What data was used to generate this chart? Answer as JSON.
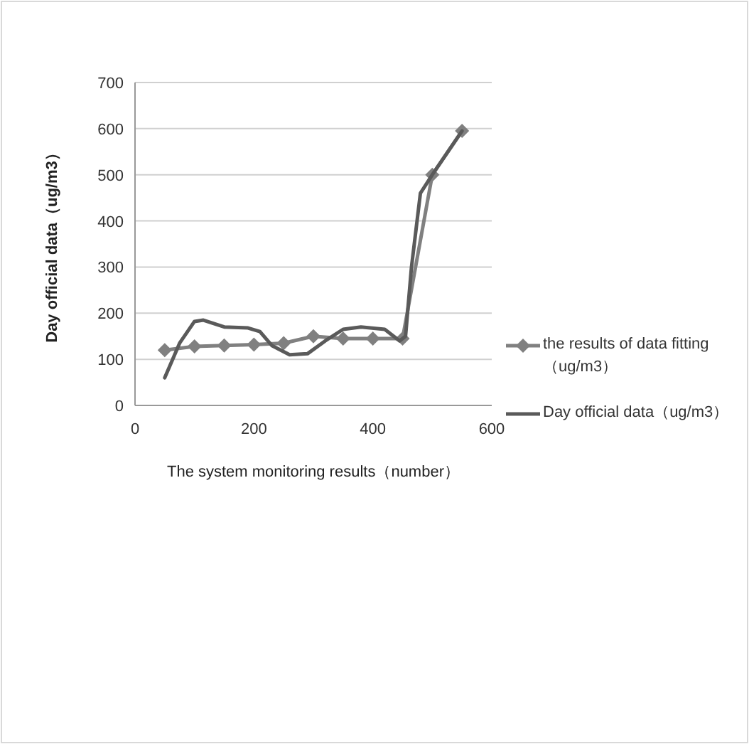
{
  "chart_data": {
    "type": "line",
    "xlabel": "The system monitoring results（number）",
    "ylabel": "Day official data（ug/m3）",
    "xlim": [
      0,
      600
    ],
    "xticks": [
      0,
      200,
      400,
      600
    ],
    "ylim": [
      0,
      700
    ],
    "yticks": [
      0,
      100,
      200,
      300,
      400,
      500,
      600,
      700
    ],
    "grid": "y",
    "legend": "right",
    "series": [
      {
        "name": "the results of data fitting（ug/m3）",
        "color": "#808080",
        "marker": "diamond",
        "x": [
          50,
          100,
          150,
          200,
          250,
          300,
          350,
          400,
          450,
          500,
          550
        ],
        "values": [
          120,
          128,
          130,
          132,
          135,
          150,
          145,
          145,
          145,
          500,
          595
        ]
      },
      {
        "name": "Day official data（ug/m3）",
        "color": "#5a5a5a",
        "marker": "none",
        "x": [
          50,
          75,
          100,
          115,
          150,
          190,
          210,
          230,
          260,
          290,
          320,
          350,
          380,
          420,
          445,
          455,
          465,
          480,
          500,
          550
        ],
        "values": [
          60,
          135,
          182,
          185,
          170,
          168,
          160,
          130,
          110,
          112,
          140,
          165,
          170,
          165,
          140,
          150,
          300,
          460,
          500,
          595
        ]
      }
    ]
  }
}
